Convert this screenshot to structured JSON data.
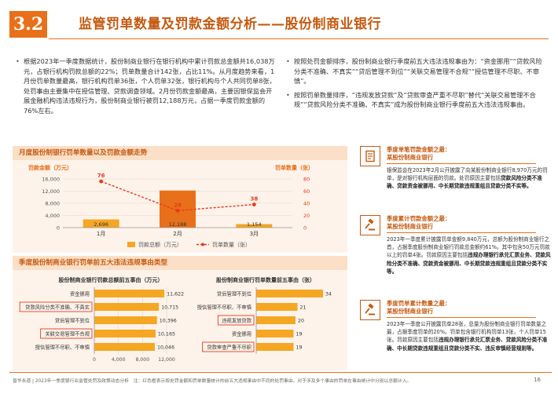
{
  "header": {
    "section_number": "3.2",
    "title": "监管罚单数量及罚款金额分析——股份制商业银行"
  },
  "left_text": [
    "根据2023年一季度数据统计，股份制商业银行在银行机构中累计罚款总金额共16,038万元，占银行机构罚款总额的22%；罚单数量合计142张，占比11%。从月度趋势来看，1月份罚单数量最高，银行机构罚单36张，个人罚单32张，银行机构与个人共同罚单8张，处罚事由主要集中在授信管理、贷款调查领域。2月份罚款金额最高，主要因银保监会开展金融机构违法违规行为，股份制商业银行被罚12,188万元，占据一季度罚款金额的76%左右。"
  ],
  "right_text": [
    "按照处罚金额排序，股份制商业银行季度前五大违法违规事由为：“资金挪用”“贷款风险分类不准确、不真实”“贷后管理不到位”“关联交易管理不合规”“授信管理不尽职、不审慎”。",
    "按照罚单数量排序，“违规发放贷款”及“贷款审查严重不尽职”替代“关联交易管理不合规”“贷款风险分类不准确、不真实”成为股份制商业银行季度前五大违法违规事由。"
  ],
  "panel_top": {
    "title": "月度股份制银行罚单数量以及罚款金额走势"
  },
  "chart_data": [
    {
      "type": "bar",
      "categories": [
        "1月",
        "2月",
        "3月"
      ],
      "series": [
        {
          "name": "罚款总额（万元）",
          "values": [
            2696,
            12188,
            1154
          ],
          "kind": "bar",
          "color": "#f5a623"
        },
        {
          "name": "罚单数量（张）",
          "values": [
            76,
            28,
            38
          ],
          "kind": "line",
          "color": "#e83a1a"
        }
      ],
      "value_labels_bar": [
        "2,696",
        "12,188",
        "1,154"
      ],
      "value_labels_line": [
        "76",
        "28",
        "38"
      ],
      "ylabel": "罚款金额（万元）",
      "y2label": "罚单数量（张）",
      "ylim": [
        0,
        16000
      ],
      "yticks": [
        "0",
        "4,000",
        "8,000",
        "12,000",
        "16,000"
      ],
      "y2lim": [
        0,
        80
      ],
      "y2ticks": [
        "0",
        "20",
        "40",
        "60",
        "80"
      ],
      "legend": "bottom"
    },
    {
      "type": "bar",
      "orientation": "horizontal",
      "title": "股份制商业银行罚款总额前五事由（万元）",
      "categories": [
        "资金挪用",
        "贷款风险分类不准确、不真实",
        "贷后管理不到位",
        "关联交易管理不合规",
        "授信管理不尽职、不审慎"
      ],
      "values": [
        11622,
        10715,
        10396,
        10165,
        10046
      ],
      "value_labels": [
        "11,622",
        "10,715",
        "10,396",
        "10,165",
        "10,046"
      ],
      "highlight": [
        false,
        true,
        false,
        true,
        false
      ],
      "xticks": [
        "0",
        "4,000",
        "8,000",
        "12,000"
      ],
      "xlim": [
        0,
        12000
      ]
    },
    {
      "type": "bar",
      "orientation": "horizontal",
      "title": "股份制商业银行罚单数量前五事由（张）",
      "categories": [
        "贷后管理不到位",
        "授信管理不尽职、不审慎",
        "违规发放贷款",
        "资金挪用",
        "贷款审查严重不尽职"
      ],
      "values": [
        34,
        21,
        20,
        19,
        19
      ],
      "value_labels": [
        "34",
        "21",
        "20",
        "19",
        "19"
      ],
      "highlight": [
        false,
        false,
        true,
        false,
        true
      ],
      "xlim": [
        0,
        36
      ]
    }
  ],
  "panel_bottom": {
    "title": "季度股份制商业银行罚单前五大违法违规事由类型"
  },
  "cases": [
    {
      "title": "季度单笔罚款金额之最：",
      "subtitle": "某股份制商业银行",
      "body_plain": "银保监会在2023年2月公开披露了向某股份制商业银行8,970万元的罚单，是对银行机构层面的罚款。处罚原因主要包括",
      "body_bold": "贷款风险分类不准确、贷款资金被挪用、中长期贷款违规重组且贷款分类不实等。"
    },
    {
      "title": "季度累计罚款金额之最：",
      "subtitle": "某股份制商业银行",
      "body_plain": "2023年一季度累计披露罚单金额9,840万元，总额为股份制商业银行之首，占据季度股份制商业银行罚款总金额约61%。其中包含50万元罚款以上的罚单4张。罚款原因主要包括",
      "body_bold": "违规办理银行承兑汇票业务、贷款风险分类不准确、贷款资金被挪用、中长期贷款违规重组且贷款分类不实等。"
    },
    {
      "title": "季度罚单累计数量之最：",
      "subtitle": "某股份制商业银行",
      "body_plain": "2023年一季度公开披露罚单28张，总量为股份制商业银行罚单数量之最，占据季度罚单的20%。罚单包含银行机构罚单13张，个人罚单15张。罚款原因主要包括",
      "body_bold": "违规办理银行承兑汇票业务、贷款风险分类不准确、中长期贷款违规重组且贷款分类不实、违反审慎经营规则等。"
    }
  ],
  "footer": {
    "text": "普华永道 | 2023年一季度银行业监管处罚及政策动态分析　注：红色框表示按处罚金额和罚单数量统计的前五大违规事由中不同的处罚事由。对于涉及多个事由的罚单在事由统计中分别以总额计入。",
    "page": "16"
  },
  "colors": {
    "accent": "#e8701a",
    "dark_accent": "#c55a11",
    "bar": "#f5a623",
    "bar_peak": "#e8701a",
    "line": "#e83a1a",
    "panel_bg": "#fdf3ea",
    "panel_header": "#fbdfc6"
  },
  "icons": [
    "document-icon",
    "gavel-icon",
    "gavel-icon"
  ]
}
